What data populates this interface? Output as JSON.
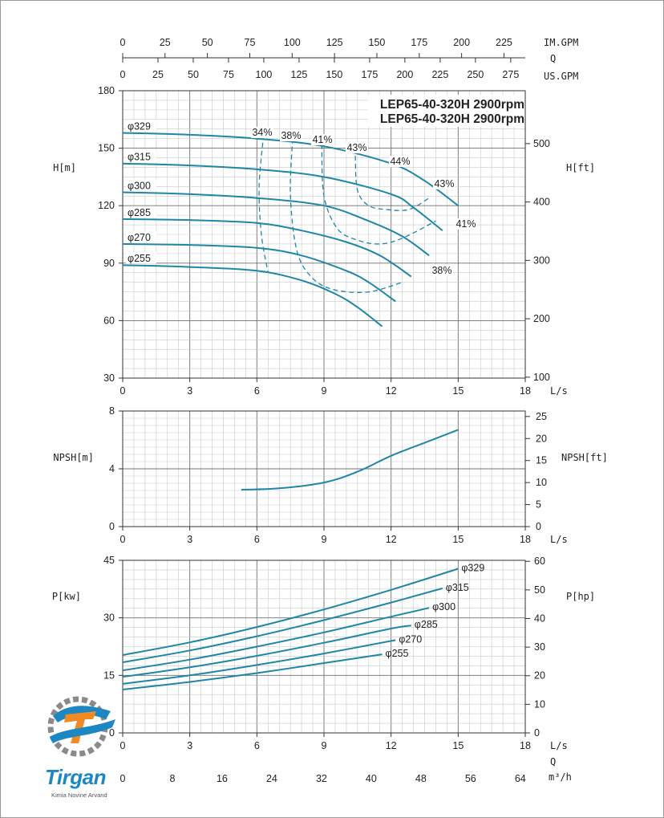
{
  "chart_data": [
    {
      "type": "line",
      "title": "LEP65-40-320H 2900rpm",
      "title2": "LEP65-40-320H 2900rpm",
      "ylabel": "H[m]",
      "ylabel_right": "H[ft]",
      "xlabel": "L/s",
      "xlim": [
        0,
        18
      ],
      "ylim": [
        30,
        180
      ],
      "yticks": [
        30,
        60,
        90,
        120,
        150,
        180
      ],
      "xticks": [
        0,
        3,
        6,
        9,
        12,
        15,
        18
      ],
      "right_ticks": [
        100,
        200,
        300,
        400,
        500
      ],
      "top_axes": {
        "im_gpm_label": "IM.GPM",
        "im_gpm_ticks": [
          0,
          25,
          50,
          75,
          100,
          125,
          150,
          175,
          200,
          225
        ],
        "q_label": "Q",
        "us_gpm_label": "US.GPM",
        "us_gpm_ticks": [
          0,
          25,
          50,
          75,
          100,
          125,
          150,
          175,
          200,
          225,
          250,
          275
        ]
      },
      "grid": true,
      "series": [
        {
          "name": "φ329",
          "x": [
            0,
            3,
            6,
            9,
            12,
            13.5,
            15
          ],
          "y": [
            158,
            157,
            155,
            151,
            142,
            133,
            120
          ]
        },
        {
          "name": "φ315",
          "x": [
            0,
            3,
            6,
            9,
            12,
            13,
            14.3
          ],
          "y": [
            142,
            141,
            139,
            135,
            126,
            119,
            107
          ]
        },
        {
          "name": "φ300",
          "x": [
            0,
            3,
            6,
            9,
            11,
            12.5,
            13.7
          ],
          "y": [
            127,
            126,
            124,
            120,
            112,
            104,
            94
          ]
        },
        {
          "name": "φ285",
          "x": [
            0,
            3,
            6,
            8,
            10,
            11.5,
            12.9
          ],
          "y": [
            113,
            112.5,
            111,
            107,
            101,
            94,
            83
          ]
        },
        {
          "name": "φ270",
          "x": [
            0,
            3,
            6,
            8,
            10,
            11,
            12.2
          ],
          "y": [
            100,
            99.5,
            98,
            94,
            86,
            80,
            70
          ]
        },
        {
          "name": "φ255",
          "x": [
            0,
            3,
            6,
            8,
            9.5,
            10.5,
            11.6
          ],
          "y": [
            89,
            88,
            86,
            81,
            74,
            67,
            57
          ]
        }
      ],
      "efficiency_lines": [
        {
          "label": "34%",
          "x": [
            6.3,
            6.1,
            6.2,
            6.5
          ],
          "y": [
            157,
            130,
            105,
            85
          ]
        },
        {
          "label": "38%",
          "x": [
            7.6,
            7.5,
            7.8,
            8.5,
            9.5,
            11,
            12.5
          ],
          "y": [
            155,
            125,
            96,
            82,
            76,
            75,
            80
          ]
        },
        {
          "label": "41%",
          "x": [
            8.9,
            9.0,
            9.6,
            10.5,
            11.5,
            12.5,
            14
          ],
          "y": [
            152,
            125,
            108,
            102,
            100,
            103,
            112
          ]
        },
        {
          "label": "43%",
          "x": [
            10.4,
            10.5,
            11.0,
            11.8,
            12.8,
            13.7
          ],
          "y": [
            146,
            128,
            120,
            118,
            118,
            124
          ]
        }
      ],
      "efficiency_labels": [
        "34%",
        "38%",
        "41%",
        "43%",
        "44%",
        "43%",
        "41%",
        "38%"
      ]
    },
    {
      "type": "line",
      "ylabel": "NPSH[m]",
      "ylabel_right": "NPSH[ft]",
      "xlabel": "L/s",
      "xlim": [
        0,
        18
      ],
      "ylim": [
        0,
        8
      ],
      "yticks": [
        0,
        4,
        8
      ],
      "xticks": [
        0,
        3,
        6,
        9,
        12,
        15,
        18
      ],
      "right_ticks": [
        0,
        5,
        10,
        15,
        20,
        25
      ],
      "grid": true,
      "series": [
        {
          "name": "NPSH",
          "x": [
            5.3,
            7,
            9,
            10.5,
            12,
            13.5,
            15
          ],
          "y": [
            2.55,
            2.65,
            3.05,
            3.8,
            4.9,
            5.8,
            6.7
          ]
        }
      ]
    },
    {
      "type": "line",
      "ylabel": "P[kw]",
      "ylabel_right": "P[hp]",
      "xlabel": "L/s",
      "x2label": "m³/h",
      "qlabel": "Q",
      "xlim": [
        0,
        18
      ],
      "ylim": [
        0,
        45
      ],
      "yticks": [
        0,
        15,
        30,
        45
      ],
      "xticks": [
        0,
        3,
        6,
        9,
        12,
        15,
        18
      ],
      "x2ticks": [
        0,
        8,
        16,
        24,
        32,
        40,
        48,
        56,
        64
      ],
      "right_ticks": [
        0,
        10,
        20,
        30,
        40,
        50,
        60
      ],
      "grid": true,
      "series": [
        {
          "name": "φ329",
          "x": [
            0,
            3,
            6,
            9,
            12,
            15
          ],
          "y": [
            20.3,
            23.6,
            27.6,
            32.2,
            37.3,
            42.8
          ]
        },
        {
          "name": "φ315",
          "x": [
            0,
            3,
            6,
            9,
            12,
            14.3
          ],
          "y": [
            18.4,
            21.5,
            25.2,
            29.4,
            34.0,
            37.7
          ]
        },
        {
          "name": "φ300",
          "x": [
            0,
            3,
            6,
            9,
            12,
            13.7
          ],
          "y": [
            16.3,
            19.1,
            22.5,
            26.2,
            30.3,
            32.6
          ]
        },
        {
          "name": "φ285",
          "x": [
            0,
            3,
            6,
            9,
            12,
            12.9
          ],
          "y": [
            14.6,
            17.1,
            20.1,
            23.5,
            27.2,
            28.0
          ]
        },
        {
          "name": "φ270",
          "x": [
            0,
            3,
            6,
            9,
            12.2
          ],
          "y": [
            12.8,
            15.0,
            17.7,
            20.7,
            24.2
          ]
        },
        {
          "name": "φ255",
          "x": [
            0,
            3,
            6,
            9,
            11.6
          ],
          "y": [
            11.3,
            13.3,
            15.6,
            18.2,
            20.5
          ]
        }
      ]
    }
  ],
  "logo": {
    "text": "Tirgan",
    "subtext": "Kimia Novine Arvand",
    "color_primary": "#1d87c4",
    "color_accent": "#f08a24"
  },
  "colors": {
    "curve": "#1f86a6",
    "grid_major": "#6f6f6f",
    "grid_minor": "#c9c9c9"
  }
}
